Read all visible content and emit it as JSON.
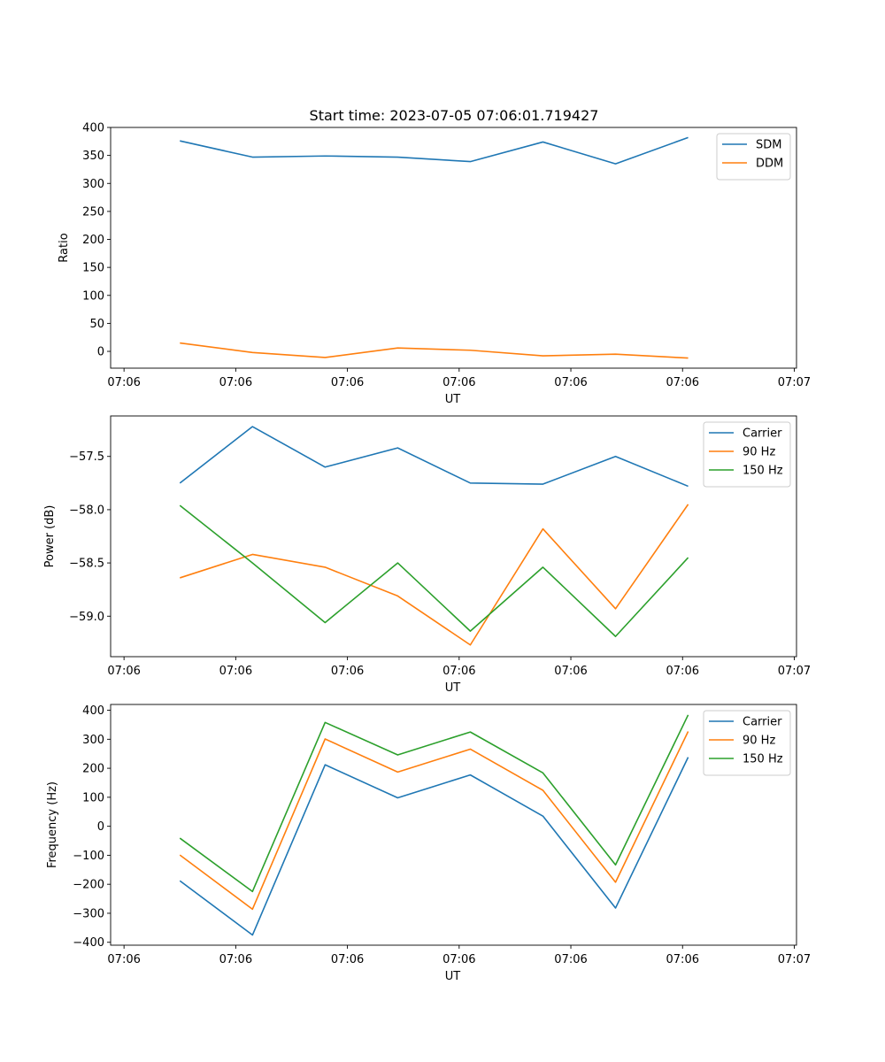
{
  "title": "Start time: 2023-07-05 07:06:01.719427",
  "chart_data": [
    {
      "type": "line",
      "ylabel": "Ratio",
      "xlabel": "UT",
      "x_tick_labels": [
        "07:06",
        "07:06",
        "07:06",
        "07:06",
        "07:06",
        "07:06",
        "07:07"
      ],
      "x_tick_positions": [
        0,
        1,
        2,
        3,
        4,
        5,
        6
      ],
      "xlim": [
        -0.12,
        6.02
      ],
      "ylim": [
        -30,
        400
      ],
      "yticks": [
        0,
        50,
        100,
        150,
        200,
        250,
        300,
        350,
        400
      ],
      "ytick_labels": [
        "0",
        "50",
        "100",
        "150",
        "200",
        "250",
        "300",
        "350",
        "400"
      ],
      "x": [
        0.5,
        1.15,
        1.8,
        2.45,
        3.1,
        3.75,
        4.4,
        5.05
      ],
      "legend": "upper right",
      "series": [
        {
          "name": "SDM",
          "color": "#1f77b4",
          "values": [
            376,
            347,
            349,
            347,
            339,
            374,
            335,
            382
          ]
        },
        {
          "name": "DDM",
          "color": "#ff7f0e",
          "values": [
            15,
            -2,
            -11,
            6,
            2,
            -8,
            -5,
            -12
          ]
        }
      ]
    },
    {
      "type": "line",
      "ylabel": "Power (dB)",
      "xlabel": "UT",
      "x_tick_labels": [
        "07:06",
        "07:06",
        "07:06",
        "07:06",
        "07:06",
        "07:06",
        "07:07"
      ],
      "x_tick_positions": [
        0,
        1,
        2,
        3,
        4,
        5,
        6
      ],
      "xlim": [
        -0.12,
        6.02
      ],
      "ylim": [
        -59.38,
        -57.12
      ],
      "yticks": [
        -59.0,
        -58.5,
        -58.0,
        -57.5
      ],
      "ytick_labels": [
        "−59.0",
        "−58.5",
        "−58.0",
        "−57.5"
      ],
      "x": [
        0.5,
        1.15,
        1.8,
        2.45,
        3.1,
        3.75,
        4.4,
        5.05
      ],
      "legend": "upper right",
      "series": [
        {
          "name": "Carrier",
          "color": "#1f77b4",
          "values": [
            -57.75,
            -57.22,
            -57.6,
            -57.42,
            -57.75,
            -57.76,
            -57.5,
            -57.78
          ]
        },
        {
          "name": "90 Hz",
          "color": "#ff7f0e",
          "values": [
            -58.64,
            -58.42,
            -58.54,
            -58.81,
            -59.27,
            -58.18,
            -58.93,
            -57.95
          ]
        },
        {
          "name": "150 Hz",
          "color": "#2ca02c",
          "values": [
            -57.96,
            -58.5,
            -59.06,
            -58.5,
            -59.14,
            -58.54,
            -59.19,
            -58.45
          ]
        }
      ]
    },
    {
      "type": "line",
      "ylabel": "Frequency (Hz)",
      "xlabel": "UT",
      "x_tick_labels": [
        "07:06",
        "07:06",
        "07:06",
        "07:06",
        "07:06",
        "07:06",
        "07:07"
      ],
      "x_tick_positions": [
        0,
        1,
        2,
        3,
        4,
        5,
        6
      ],
      "xlim": [
        -0.12,
        6.02
      ],
      "ylim": [
        -410,
        420
      ],
      "yticks": [
        -400,
        -300,
        -200,
        -100,
        0,
        100,
        200,
        300,
        400
      ],
      "ytick_labels": [
        "−400",
        "−300",
        "−200",
        "−100",
        "0",
        "100",
        "200",
        "300",
        "400"
      ],
      "x": [
        0.5,
        1.15,
        1.8,
        2.45,
        3.1,
        3.75,
        4.4,
        5.05
      ],
      "legend": "upper right",
      "series": [
        {
          "name": "Carrier",
          "color": "#1f77b4",
          "values": [
            -188,
            -375,
            212,
            98,
            177,
            35,
            -282,
            238
          ]
        },
        {
          "name": "90 Hz",
          "color": "#ff7f0e",
          "values": [
            -99,
            -286,
            301,
            187,
            266,
            124,
            -193,
            327
          ]
        },
        {
          "name": "150 Hz",
          "color": "#2ca02c",
          "values": [
            -41,
            -225,
            358,
            246,
            325,
            184,
            -133,
            384
          ]
        }
      ]
    }
  ]
}
